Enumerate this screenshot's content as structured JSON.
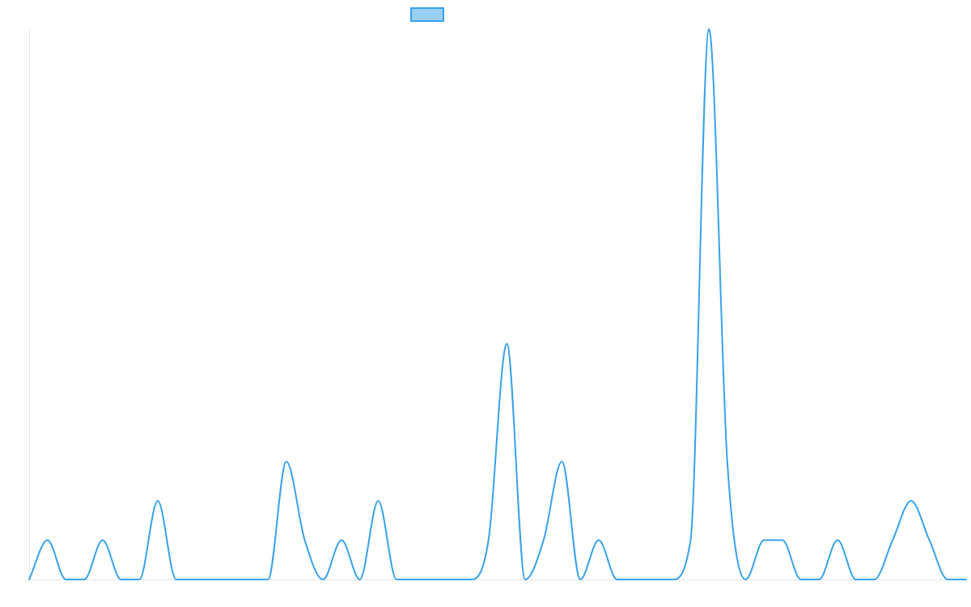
{
  "colors": {
    "line": "#36a2eb",
    "legend_fill": "#9ad0f5",
    "axis": "#e5e5e5"
  },
  "chart_data": {
    "type": "line",
    "title": "",
    "xlabel": "",
    "ylabel": "",
    "grid": false,
    "smooth": true,
    "legend": "top-center",
    "ylim": [
      0,
      14
    ],
    "x": [
      0,
      1,
      2,
      3,
      4,
      5,
      6,
      7,
      8,
      9,
      10,
      11,
      12,
      13,
      14,
      15,
      16,
      17,
      18,
      19,
      20,
      21,
      22,
      23,
      24,
      25,
      26,
      27,
      28,
      29,
      30,
      31,
      32,
      33,
      34,
      35,
      36,
      37,
      38,
      39,
      40,
      41,
      42,
      43,
      44,
      45,
      46,
      47,
      48,
      49,
      50,
      51
    ],
    "series": [
      {
        "name": "",
        "values": [
          0,
          1,
          0,
          0,
          1,
          0,
          0,
          2,
          0,
          0,
          0,
          0,
          0,
          0,
          3,
          1,
          0,
          1,
          0,
          2,
          0,
          0,
          0,
          0,
          0,
          1,
          6,
          0,
          1,
          3,
          0,
          1,
          0,
          0,
          0,
          0,
          1,
          14,
          3,
          0,
          1,
          1,
          0,
          0,
          1,
          0,
          0,
          1,
          2,
          1,
          0,
          0
        ]
      }
    ]
  }
}
